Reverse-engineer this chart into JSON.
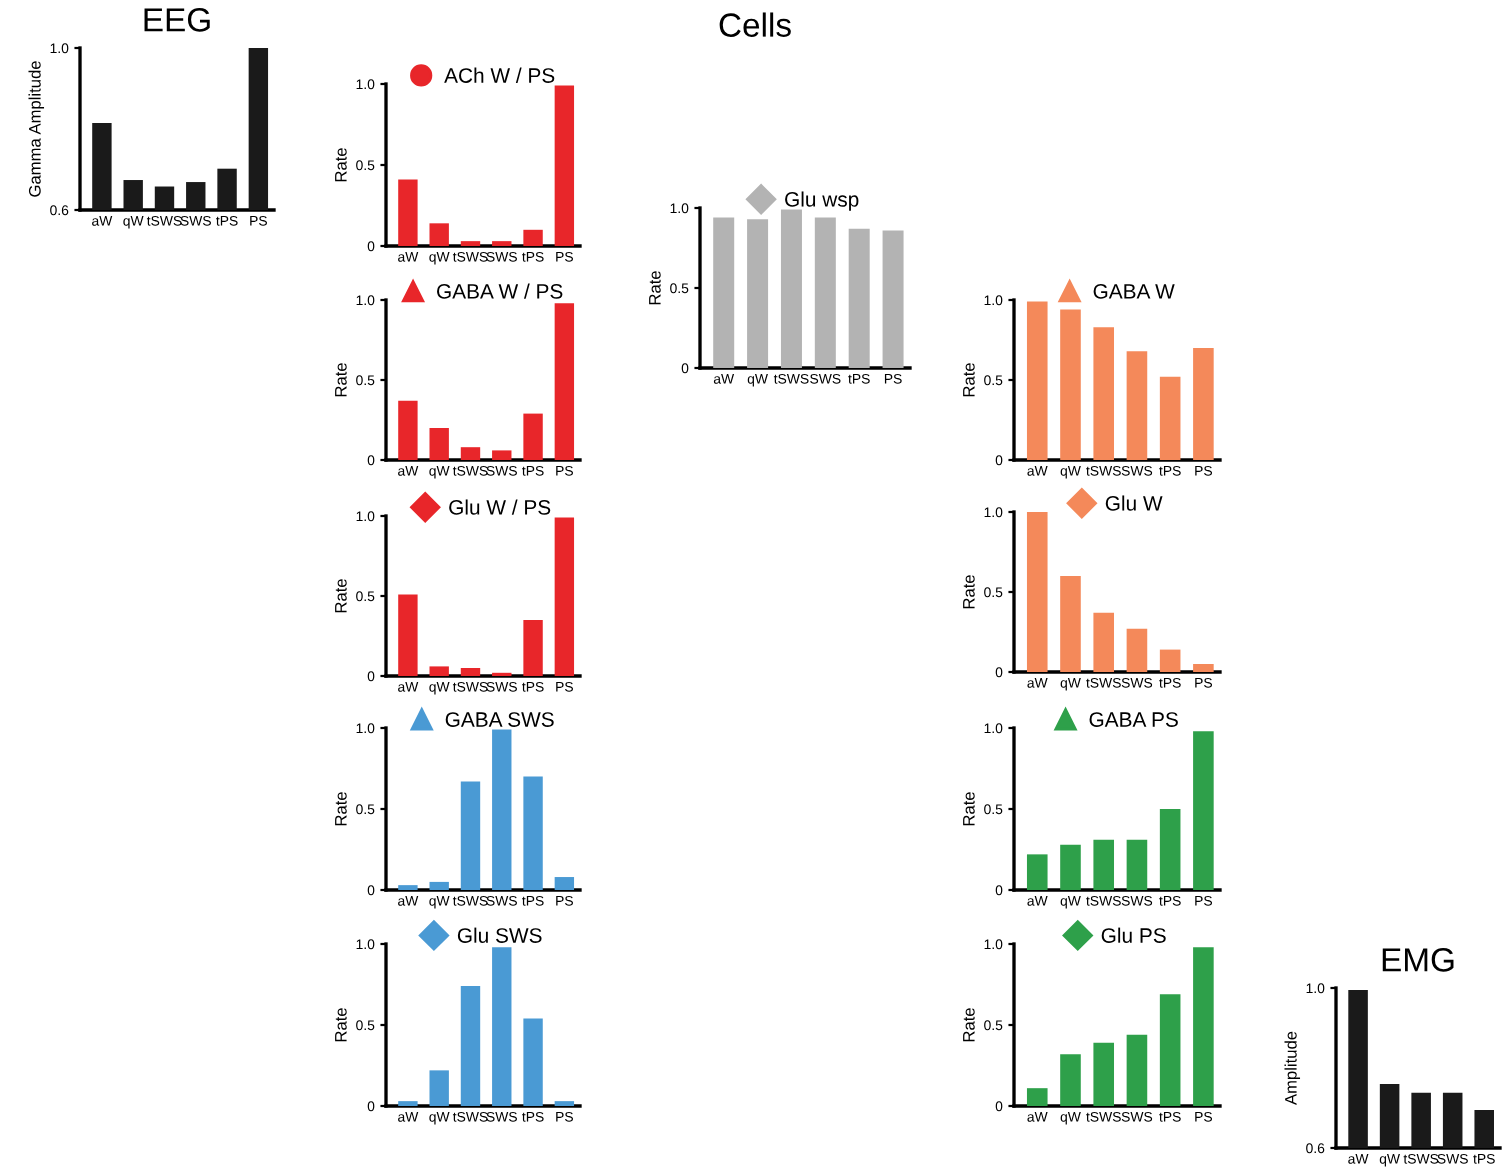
{
  "chart_data": [
    {
      "type": "bar",
      "title": "EEG",
      "ylabel": "Gamma Amplitude",
      "categories": [
        "aW",
        "qW",
        "tSWS",
        "SWS",
        "tPS",
        "PS"
      ],
      "series": [
        {
          "color": "#1a1a1a",
          "values": [
            0.815,
            0.674,
            0.658,
            0.669,
            0.702,
            1.0
          ]
        }
      ],
      "ylim": [
        0.6,
        1.0
      ],
      "yticks": [
        {
          "value": 0.6,
          "label": "0.6"
        },
        {
          "value": 1.0,
          "label": "1.0"
        }
      ],
      "grid": false
    },
    {
      "type": "bar",
      "ylabel": "Rate",
      "annotations": [
        "Cells"
      ],
      "categories": [
        "aW",
        "qW",
        "tSWS",
        "SWS",
        "tPS",
        "PS"
      ],
      "series": [
        {
          "name": "ACh W / PS",
          "color": "#e8262a",
          "values": [
            0.41,
            0.14,
            0.03,
            0.03,
            0.1,
            0.99
          ]
        }
      ],
      "ylim": [
        0,
        1.0
      ],
      "yticks": [
        0,
        {
          "value": 0.5,
          "label": "0.5"
        },
        {
          "value": 1.0,
          "label": "1.0"
        }
      ],
      "legend": "top",
      "marker": "circle",
      "grid": false
    },
    {
      "type": "bar",
      "ylabel": "Rate",
      "categories": [
        "aW",
        "qW",
        "tSWS",
        "SWS",
        "tPS",
        "PS"
      ],
      "series": [
        {
          "name": "GABA W / PS",
          "color": "#e8262a",
          "values": [
            0.37,
            0.2,
            0.08,
            0.06,
            0.29,
            0.98
          ]
        }
      ],
      "ylim": [
        0,
        1.0
      ],
      "yticks": [
        0,
        {
          "value": 0.5,
          "label": "0.5"
        },
        {
          "value": 1.0,
          "label": "1.0"
        }
      ],
      "legend": "top",
      "marker": "triangle",
      "grid": false
    },
    {
      "type": "bar",
      "ylabel": "Rate",
      "categories": [
        "aW",
        "qW",
        "tSWS",
        "SWS",
        "tPS",
        "PS"
      ],
      "series": [
        {
          "name": "Glu W / PS",
          "color": "#e8262a",
          "values": [
            0.51,
            0.06,
            0.05,
            0.02,
            0.35,
            0.99
          ]
        }
      ],
      "ylim": [
        0,
        1.0
      ],
      "yticks": [
        0,
        {
          "value": 0.5,
          "label": "0.5"
        },
        {
          "value": 1.0,
          "label": "1.0"
        }
      ],
      "legend": "top",
      "marker": "diamond",
      "grid": false
    },
    {
      "type": "bar",
      "ylabel": "Rate",
      "categories": [
        "aW",
        "qW",
        "tSWS",
        "SWS",
        "tPS",
        "PS"
      ],
      "series": [
        {
          "name": "GABA SWS",
          "color": "#4a9ad4",
          "values": [
            0.03,
            0.05,
            0.67,
            0.99,
            0.7,
            0.08
          ]
        }
      ],
      "ylim": [
        0,
        1.0
      ],
      "yticks": [
        0,
        {
          "value": 0.5,
          "label": "0.5"
        },
        {
          "value": 1.0,
          "label": "1.0"
        }
      ],
      "legend": "top",
      "marker": "triangle",
      "grid": false
    },
    {
      "type": "bar",
      "ylabel": "Rate",
      "categories": [
        "aW",
        "qW",
        "tSWS",
        "SWS",
        "tPS",
        "PS"
      ],
      "series": [
        {
          "name": "Glu SWS",
          "color": "#4a9ad4",
          "values": [
            0.03,
            0.22,
            0.74,
            0.98,
            0.54,
            0.03
          ]
        }
      ],
      "ylim": [
        0,
        1.0
      ],
      "yticks": [
        0,
        {
          "value": 0.5,
          "label": "0.5"
        },
        {
          "value": 1.0,
          "label": "1.0"
        }
      ],
      "legend": "top",
      "marker": "diamond",
      "grid": false
    },
    {
      "type": "bar",
      "ylabel": "Rate",
      "categories": [
        "aW",
        "qW",
        "tSWS",
        "SWS",
        "tPS",
        "PS"
      ],
      "series": [
        {
          "name": "Glu wsp",
          "color": "#b3b3b3",
          "values": [
            0.94,
            0.93,
            0.99,
            0.94,
            0.87,
            0.86
          ]
        }
      ],
      "ylim": [
        0,
        1.0
      ],
      "yticks": [
        0,
        {
          "value": 0.5,
          "label": "0.5"
        },
        {
          "value": 1.0,
          "label": "1.0"
        }
      ],
      "legend": "top",
      "marker": "diamond",
      "grid": false
    },
    {
      "type": "bar",
      "ylabel": "Rate",
      "categories": [
        "aW",
        "qW",
        "tSWS",
        "SWS",
        "tPS",
        "PS"
      ],
      "series": [
        {
          "name": "GABA W",
          "color": "#f4895a",
          "values": [
            0.99,
            0.94,
            0.83,
            0.68,
            0.52,
            0.7
          ]
        }
      ],
      "ylim": [
        0,
        1.0
      ],
      "yticks": [
        0,
        {
          "value": 0.5,
          "label": "0.5"
        },
        {
          "value": 1.0,
          "label": "1.0"
        }
      ],
      "legend": "top",
      "marker": "triangle",
      "grid": false
    },
    {
      "type": "bar",
      "ylabel": "Rate",
      "categories": [
        "aW",
        "qW",
        "tSWS",
        "SWS",
        "tPS",
        "PS"
      ],
      "series": [
        {
          "name": "Glu W",
          "color": "#f4895a",
          "values": [
            1.0,
            0.6,
            0.37,
            0.27,
            0.14,
            0.05
          ]
        }
      ],
      "ylim": [
        0,
        1.0
      ],
      "yticks": [
        0,
        {
          "value": 0.5,
          "label": "0.5"
        },
        {
          "value": 1.0,
          "label": "1.0"
        }
      ],
      "legend": "top",
      "marker": "diamond",
      "grid": false
    },
    {
      "type": "bar",
      "ylabel": "Rate",
      "categories": [
        "aW",
        "qW",
        "tSWS",
        "SWS",
        "tPS",
        "PS"
      ],
      "series": [
        {
          "name": "GABA PS",
          "color": "#2ea04a",
          "values": [
            0.22,
            0.28,
            0.31,
            0.31,
            0.5,
            0.98
          ]
        }
      ],
      "ylim": [
        0,
        1.0
      ],
      "yticks": [
        0,
        {
          "value": 0.5,
          "label": "0.5"
        },
        {
          "value": 1.0,
          "label": "1.0"
        }
      ],
      "legend": "top",
      "marker": "triangle",
      "grid": false
    },
    {
      "type": "bar",
      "ylabel": "Rate",
      "categories": [
        "aW",
        "qW",
        "tSWS",
        "SWS",
        "tPS",
        "PS"
      ],
      "series": [
        {
          "name": "Glu PS",
          "color": "#2ea04a",
          "values": [
            0.11,
            0.32,
            0.39,
            0.44,
            0.69,
            0.98
          ]
        }
      ],
      "ylim": [
        0,
        1.0
      ],
      "yticks": [
        0,
        {
          "value": 0.5,
          "label": "0.5"
        },
        {
          "value": 1.0,
          "label": "1.0"
        }
      ],
      "legend": "top",
      "marker": "diamond",
      "grid": false
    },
    {
      "type": "bar",
      "title": "EMG",
      "ylabel": "Amplitude",
      "categories": [
        "aW",
        "qW",
        "tSWS",
        "SWS",
        "tPS"
      ],
      "series": [
        {
          "color": "#1a1a1a",
          "values": [
            0.995,
            0.76,
            0.738,
            0.738,
            0.695
          ]
        }
      ],
      "ylim": [
        0.6,
        1.0
      ],
      "yticks": [
        {
          "value": 0.6,
          "label": "0.6"
        },
        {
          "value": 1.0,
          "label": "1.0"
        }
      ],
      "grid": false
    }
  ]
}
